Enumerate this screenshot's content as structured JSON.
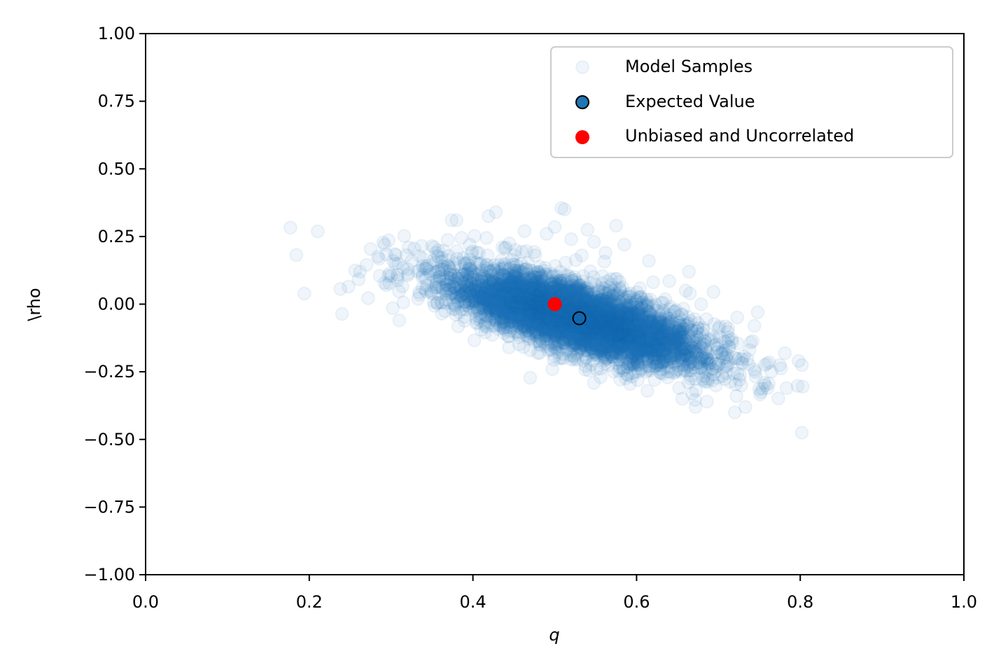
{
  "chart_data": {
    "type": "scatter",
    "title": "",
    "xlabel": "q",
    "ylabel": "\\rho",
    "xlim": [
      0.0,
      1.0
    ],
    "ylim": [
      -1.0,
      1.0
    ],
    "xticks": [
      "0.0",
      "0.2",
      "0.4",
      "0.6",
      "0.8",
      "1.0"
    ],
    "xtick_values": [
      0.0,
      0.2,
      0.4,
      0.6,
      0.8,
      1.0
    ],
    "yticks": [
      "1.00",
      "0.75",
      "0.50",
      "0.25",
      "0.00",
      "−0.25",
      "−0.50",
      "−0.75",
      "−1.00"
    ],
    "ytick_values": [
      1.0,
      0.75,
      0.5,
      0.25,
      0.0,
      -0.25,
      -0.5,
      -0.75,
      -1.0
    ],
    "grid": false,
    "legend_position": "top-right",
    "series": [
      {
        "name": "Model Samples",
        "color": "#1f77b4",
        "alpha": 0.07,
        "points": [
          [
            0.177,
            0.283
          ],
          [
            0.194,
            0.039
          ],
          [
            0.238,
            0.056
          ],
          [
            0.24,
            -0.036
          ],
          [
            0.248,
            0.065
          ],
          [
            0.262,
            0.12
          ],
          [
            0.27,
            0.145
          ],
          [
            0.272,
            0.022
          ],
          [
            0.275,
            0.204
          ],
          [
            0.286,
            0.105
          ],
          [
            0.292,
            0.078
          ],
          [
            0.297,
            0.236
          ],
          [
            0.302,
            -0.015
          ],
          [
            0.306,
            0.182
          ],
          [
            0.31,
            -0.06
          ],
          [
            0.315,
            0.006
          ],
          [
            0.316,
            0.252
          ],
          [
            0.32,
            0.13
          ],
          [
            0.325,
            0.16
          ],
          [
            0.333,
            0.02
          ],
          [
            0.338,
            0.1
          ],
          [
            0.344,
            0.07
          ],
          [
            0.35,
            0.215
          ],
          [
            0.355,
            0.19
          ],
          [
            0.362,
            -0.035
          ],
          [
            0.367,
            0.05
          ],
          [
            0.37,
            0.14
          ],
          [
            0.374,
            0.31
          ],
          [
            0.38,
            0.31
          ],
          [
            0.386,
            0.245
          ],
          [
            0.391,
            0.15
          ],
          [
            0.396,
            0.22
          ],
          [
            0.402,
            0.252
          ],
          [
            0.406,
            0.09
          ],
          [
            0.41,
            -0.095
          ],
          [
            0.418,
            0.18
          ],
          [
            0.419,
            0.325
          ],
          [
            0.428,
            0.34
          ],
          [
            0.436,
            0.21
          ],
          [
            0.444,
            -0.16
          ],
          [
            0.452,
            0.2
          ],
          [
            0.463,
            0.27
          ],
          [
            0.47,
            -0.17
          ],
          [
            0.476,
            0.18
          ],
          [
            0.49,
            0.26
          ],
          [
            0.497,
            -0.24
          ],
          [
            0.5,
            0.285
          ],
          [
            0.508,
            0.355
          ],
          [
            0.512,
            0.35
          ],
          [
            0.52,
            0.24
          ],
          [
            0.524,
            -0.205
          ],
          [
            0.533,
            0.18
          ],
          [
            0.54,
            0.275
          ],
          [
            0.548,
            0.23
          ],
          [
            0.556,
            -0.27
          ],
          [
            0.562,
            0.19
          ],
          [
            0.575,
            0.29
          ],
          [
            0.585,
            0.22
          ],
          [
            0.592,
            -0.295
          ],
          [
            0.602,
            -0.25
          ],
          [
            0.615,
            0.16
          ],
          [
            0.622,
            -0.28
          ],
          [
            0.64,
            0.085
          ],
          [
            0.652,
            -0.31
          ],
          [
            0.66,
            0.05
          ],
          [
            0.664,
            0.12
          ],
          [
            0.668,
            -0.33
          ],
          [
            0.672,
            -0.38
          ],
          [
            0.68,
            -0.23
          ],
          [
            0.686,
            -0.36
          ],
          [
            0.694,
            0.045
          ],
          [
            0.7,
            -0.09
          ],
          [
            0.706,
            -0.2
          ],
          [
            0.712,
            -0.09
          ],
          [
            0.717,
            -0.14
          ],
          [
            0.72,
            -0.4
          ],
          [
            0.722,
            -0.34
          ],
          [
            0.728,
            -0.3
          ],
          [
            0.733,
            -0.38
          ],
          [
            0.738,
            -0.17
          ],
          [
            0.744,
            -0.08
          ],
          [
            0.748,
            -0.03
          ],
          [
            0.752,
            -0.325
          ],
          [
            0.756,
            -0.29
          ],
          [
            0.76,
            -0.31
          ],
          [
            0.762,
            -0.215
          ],
          [
            0.775,
            -0.225
          ],
          [
            0.798,
            -0.21
          ],
          [
            0.802,
            -0.225
          ],
          [
            0.803,
            -0.305
          ],
          [
            0.802,
            -0.475
          ]
        ],
        "cloud": {
          "count": 5600,
          "mean": [
            0.53,
            -0.05
          ],
          "sd": [
            0.075,
            0.085
          ],
          "correlation": -0.72,
          "seed": 7
        }
      },
      {
        "name": "Expected Value",
        "face_color": "#1f77b4",
        "edge_color": "#000000",
        "points": [
          [
            0.53,
            -0.052
          ]
        ]
      },
      {
        "name": "Unbiased and Uncorrelated",
        "color": "#ff0000",
        "points": [
          [
            0.5,
            0.0
          ]
        ]
      }
    ]
  }
}
